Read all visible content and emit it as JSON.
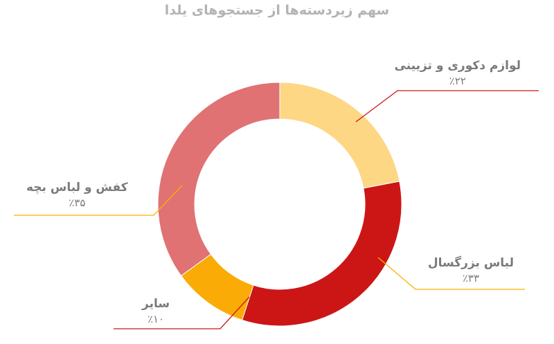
{
  "chart_data": {
    "type": "pie",
    "donut": true,
    "title": "سهم زیردسته‌ها از جستجوهای یلدا",
    "legend": "none",
    "slices": [
      {
        "name": "لوازم دکوری و تزیینی",
        "value": 22,
        "label": "٪۲۲",
        "color": "#fdd784",
        "line_color": "#cc1616"
      },
      {
        "name": "لباس بزرگسال",
        "value": 33,
        "label": "٪۳۳",
        "color": "#cc1616",
        "line_color": "#fbb000"
      },
      {
        "name": "سایر",
        "value": 10,
        "label": "٪۱۰",
        "color": "#fbab06",
        "line_color": "#cc1616"
      },
      {
        "name": "کفش و لباس بچه",
        "value": 35,
        "label": "٪۳۵",
        "color": "#e07274",
        "line_color": "#fbb000"
      }
    ]
  }
}
